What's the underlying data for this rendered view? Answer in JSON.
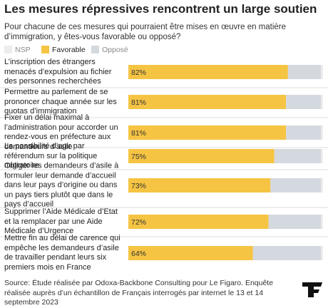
{
  "chart_data": {
    "type": "stacked-bar",
    "title": "Les mesures répressives rencontrent un large soutien",
    "subtitle": "Pour chacune de ces mesures qui pourraient être mises en œuvre en matière d’immigration, y êtes-vous favorable ou opposé?",
    "categories": [
      "L’inscription des étrangers menacés d’expulsion au fichier des personnes recherchées",
      "Permettre au parlement de se prononcer chaque année sur les quotas d’immigration",
      "Fixer un délai maximal à l’administration pour accorder un rendez-vous en préfecture aux demandeurs d’asile",
      "La possibilité d’agir par référendum sur la politique migratoire",
      "Obliger les demandeurs d’asile à formuler leur demande d’accueil dans leur pays d’origine ou dans un pays tiers plutôt que dans le pays d’accueil",
      "Supprimer l’Aide Médicale d’Etat et la remplacer par une Aide Médicale d’Urgence",
      "Mettre fin au délai de carence qui empêche les demandeurs d’asile de travailler pendant leurs six premiers mois en France"
    ],
    "series": [
      {
        "name": "NSP",
        "color": "#ececec",
        "values": [
          1,
          1,
          1,
          1,
          1,
          1,
          1
        ]
      },
      {
        "name": "Favorable",
        "color": "#f6c443",
        "values": [
          82,
          81,
          81,
          75,
          73,
          72,
          64
        ],
        "value_labels": [
          "82%",
          "81%",
          "81%",
          "75%",
          "73%",
          "72%",
          "64%"
        ]
      },
      {
        "name": "Opposé",
        "color": "#d4d8df",
        "values": [
          17,
          18,
          18,
          24,
          26,
          27,
          35
        ]
      }
    ],
    "xlim": [
      0,
      100
    ],
    "source": "Source: Étude réalisée par Odoxa-Backbone Consulting pour Le Figaro. Enquête réalisée auprès d’un échantillon de Français interrogés par internet le 13 et 14 septembre 2023"
  }
}
